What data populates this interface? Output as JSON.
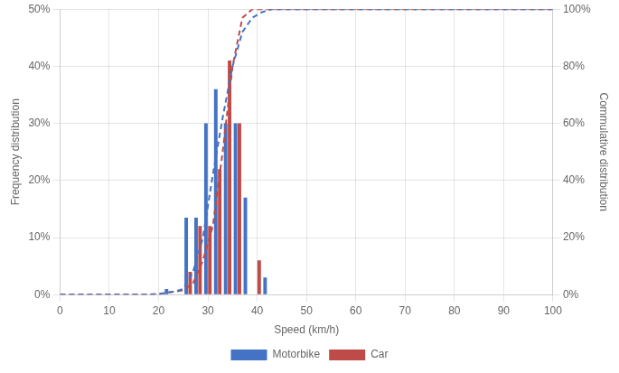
{
  "chart_data": {
    "type": "bar",
    "xlabel": "Speed (km/h)",
    "ylabel": "Frequency distribution",
    "y2label": "Commulative distribution",
    "xlim": [
      0,
      100
    ],
    "xticks": [
      0,
      10,
      20,
      30,
      40,
      50,
      60,
      70,
      80,
      90,
      100
    ],
    "ylim": [
      0,
      0.5
    ],
    "yticks": [
      {
        "value": 0.0,
        "label": "0%"
      },
      {
        "value": 0.1,
        "label": "10%"
      },
      {
        "value": 0.2,
        "label": "20%"
      },
      {
        "value": 0.3,
        "label": "30%"
      },
      {
        "value": 0.4,
        "label": "40%"
      },
      {
        "value": 0.5,
        "label": "50%"
      }
    ],
    "y2lim": [
      0,
      1.0
    ],
    "y2ticks": [
      {
        "value": 0.0,
        "label": "0%"
      },
      {
        "value": 0.2,
        "label": "20%"
      },
      {
        "value": 0.4,
        "label": "40%"
      },
      {
        "value": 0.6,
        "label": "60%"
      },
      {
        "value": 0.8,
        "label": "80%"
      },
      {
        "value": 1.0,
        "label": "100%"
      }
    ],
    "grid": true,
    "legend": "bottom",
    "series": [
      {
        "name": "Motorbike",
        "type": "bar",
        "color": "#4472C4",
        "x": [
          22,
          24,
          26,
          28,
          30,
          32,
          34,
          36,
          38,
          40,
          42,
          44
        ],
        "values": [
          0.01,
          0.0,
          0.135,
          0.135,
          0.3,
          0.36,
          0.3,
          0.3,
          0.17,
          0.0,
          0.03,
          0.0
        ]
      },
      {
        "name": "Car",
        "type": "bar",
        "color": "#BE4B48",
        "x": [
          22,
          24,
          26,
          28,
          30,
          32,
          34,
          36,
          38,
          40,
          42,
          44
        ],
        "values": [
          0.0,
          0.0,
          0.04,
          0.12,
          0.12,
          0.22,
          0.41,
          0.3,
          0.0,
          0.06,
          0.0,
          0.0
        ]
      },
      {
        "type": "line",
        "axis": "y2",
        "color": "#4472C4",
        "line_style": "dashed",
        "x": [
          0,
          18,
          20,
          21,
          23,
          25,
          27,
          29,
          31,
          33,
          35,
          37,
          39,
          41,
          43,
          46,
          55,
          100
        ],
        "values": [
          0,
          0,
          0.002,
          0.005,
          0.01,
          0.02,
          0.08,
          0.2,
          0.42,
          0.62,
          0.8,
          0.92,
          0.97,
          0.99,
          1.0,
          1.0,
          1.0,
          1.0
        ]
      },
      {
        "type": "line",
        "axis": "y2",
        "color": "#BE4B48",
        "line_style": "dashed",
        "x": [
          0,
          18,
          20,
          21,
          23,
          25,
          27,
          29,
          31,
          33,
          35,
          37,
          39,
          41,
          43,
          46,
          55,
          100
        ],
        "values": [
          0,
          0,
          0.002,
          0.005,
          0.01,
          0.015,
          0.04,
          0.12,
          0.24,
          0.5,
          0.8,
          0.97,
          1.0,
          1.0,
          1.0,
          1.0,
          1.0,
          1.0
        ]
      }
    ]
  }
}
